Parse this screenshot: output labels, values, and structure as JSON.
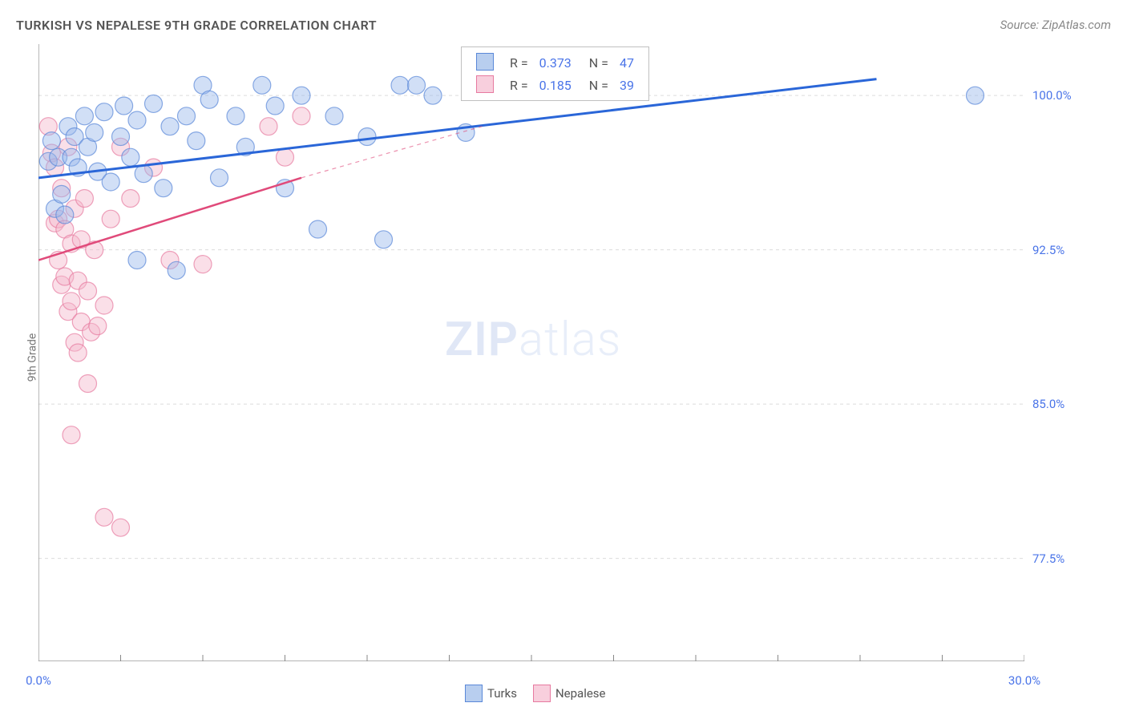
{
  "title": "TURKISH VS NEPALESE 9TH GRADE CORRELATION CHART",
  "source": "Source: ZipAtlas.com",
  "ylabel": "9th Grade",
  "watermark_bold": "ZIP",
  "watermark_light": "atlas",
  "chart": {
    "type": "scatter",
    "x_domain": [
      0,
      30
    ],
    "y_domain": [
      72.5,
      102.5
    ],
    "y_ticks": [
      77.5,
      85.0,
      92.5,
      100.0
    ],
    "y_tick_labels": [
      "77.5%",
      "85.0%",
      "92.5%",
      "100.0%"
    ],
    "x_ticks": [
      0,
      2.5,
      5,
      7.5,
      10,
      12.5,
      15,
      17.5,
      20,
      22.5,
      25,
      27.5,
      30
    ],
    "x_tick_labels_visible": {
      "0": "0.0%",
      "30": "30.0%"
    },
    "grid_color": "#dcdcdc",
    "axis_color": "#888888",
    "background_color": "#ffffff",
    "marker_radius": 11,
    "marker_opacity": 0.45,
    "series": [
      {
        "name": "Turks",
        "color_fill": "#9ab8ea",
        "color_stroke": "#5a88d8",
        "trend": {
          "x1": 0,
          "y1": 96.0,
          "x2": 25.5,
          "y2": 100.8,
          "color": "#2a66d8",
          "width": 3,
          "dash_from_x": null
        },
        "R": 0.373,
        "N": 47,
        "points": [
          [
            0.3,
            96.8
          ],
          [
            0.4,
            97.8
          ],
          [
            0.5,
            94.5
          ],
          [
            0.6,
            97.0
          ],
          [
            0.7,
            95.2
          ],
          [
            0.8,
            94.2
          ],
          [
            0.9,
            98.5
          ],
          [
            1.0,
            97.0
          ],
          [
            1.1,
            98.0
          ],
          [
            1.2,
            96.5
          ],
          [
            1.4,
            99.0
          ],
          [
            1.5,
            97.5
          ],
          [
            1.7,
            98.2
          ],
          [
            1.8,
            96.3
          ],
          [
            2.0,
            99.2
          ],
          [
            2.2,
            95.8
          ],
          [
            2.5,
            98.0
          ],
          [
            2.6,
            99.5
          ],
          [
            2.8,
            97.0
          ],
          [
            3.0,
            98.8
          ],
          [
            3.2,
            96.2
          ],
          [
            3.0,
            92.0
          ],
          [
            3.5,
            99.6
          ],
          [
            3.8,
            95.5
          ],
          [
            4.0,
            98.5
          ],
          [
            4.2,
            91.5
          ],
          [
            4.5,
            99.0
          ],
          [
            4.8,
            97.8
          ],
          [
            5.0,
            100.5
          ],
          [
            5.2,
            99.8
          ],
          [
            5.5,
            96.0
          ],
          [
            6.0,
            99.0
          ],
          [
            6.3,
            97.5
          ],
          [
            6.8,
            100.5
          ],
          [
            7.2,
            99.5
          ],
          [
            7.5,
            95.5
          ],
          [
            8.0,
            100.0
          ],
          [
            8.5,
            93.5
          ],
          [
            9.0,
            99.0
          ],
          [
            10.0,
            98.0
          ],
          [
            10.5,
            93.0
          ],
          [
            11.0,
            100.5
          ],
          [
            11.5,
            100.5
          ],
          [
            12.0,
            100.0
          ],
          [
            13.0,
            98.2
          ],
          [
            13.2,
            100.5
          ],
          [
            28.5,
            100.0
          ]
        ]
      },
      {
        "name": "Nepalese",
        "color_fill": "#f5b8cc",
        "color_stroke": "#e77aa0",
        "trend": {
          "x1": 0,
          "y1": 92.0,
          "x2": 8.0,
          "y2": 96.0,
          "dash_from_x": 8.0,
          "x3": 13.5,
          "y3": 98.5,
          "color": "#e04a7a",
          "width": 2.5
        },
        "R": 0.185,
        "N": 39,
        "points": [
          [
            0.3,
            98.5
          ],
          [
            0.4,
            97.2
          ],
          [
            0.5,
            96.5
          ],
          [
            0.5,
            93.8
          ],
          [
            0.6,
            94.0
          ],
          [
            0.6,
            92.0
          ],
          [
            0.7,
            95.5
          ],
          [
            0.7,
            90.8
          ],
          [
            0.8,
            93.5
          ],
          [
            0.8,
            91.2
          ],
          [
            0.9,
            97.5
          ],
          [
            0.9,
            89.5
          ],
          [
            1.0,
            92.8
          ],
          [
            1.0,
            90.0
          ],
          [
            1.1,
            94.5
          ],
          [
            1.1,
            88.0
          ],
          [
            1.2,
            91.0
          ],
          [
            1.2,
            87.5
          ],
          [
            1.3,
            93.0
          ],
          [
            1.3,
            89.0
          ],
          [
            1.4,
            95.0
          ],
          [
            1.5,
            86.0
          ],
          [
            1.5,
            90.5
          ],
          [
            1.6,
            88.5
          ],
          [
            1.7,
            92.5
          ],
          [
            1.8,
            88.8
          ],
          [
            1.0,
            83.5
          ],
          [
            2.0,
            89.8
          ],
          [
            2.2,
            94.0
          ],
          [
            2.0,
            79.5
          ],
          [
            2.5,
            97.5
          ],
          [
            2.5,
            79.0
          ],
          [
            2.8,
            95.0
          ],
          [
            3.5,
            96.5
          ],
          [
            4.0,
            92.0
          ],
          [
            5.0,
            91.8
          ],
          [
            7.0,
            98.5
          ],
          [
            7.5,
            97.0
          ],
          [
            8.0,
            99.0
          ]
        ]
      }
    ],
    "legend_top": {
      "rows": [
        {
          "swatch_fill": "#b8ceef",
          "swatch_stroke": "#5a88d8",
          "R_label": "R =",
          "R": "0.373",
          "N_label": "N =",
          "N": "47"
        },
        {
          "swatch_fill": "#f8cfdd",
          "swatch_stroke": "#e77aa0",
          "R_label": "R =",
          "R": "0.185",
          "N_label": "N =",
          "N": "39"
        }
      ]
    },
    "bottom_legend": [
      {
        "swatch_fill": "#b8ceef",
        "swatch_stroke": "#5a88d8",
        "label": "Turks"
      },
      {
        "swatch_fill": "#f8cfdd",
        "swatch_stroke": "#e77aa0",
        "label": "Nepalese"
      }
    ]
  }
}
